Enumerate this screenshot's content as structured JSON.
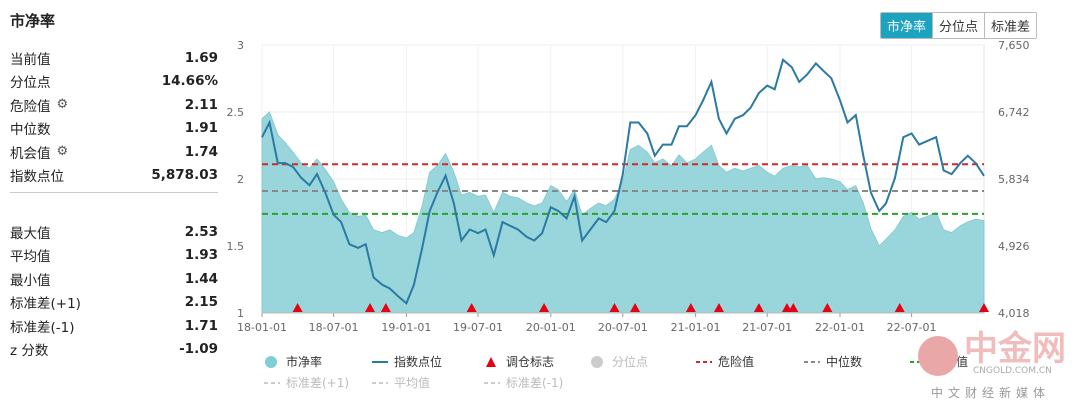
{
  "title": "市净率",
  "stats_top": [
    {
      "label": "当前值",
      "value": "1.69",
      "gear": false
    },
    {
      "label": "分位点",
      "value": "14.66%",
      "gear": false
    },
    {
      "label": "危险值",
      "value": "2.11",
      "gear": true
    },
    {
      "label": "中位数",
      "value": "1.91",
      "gear": false
    },
    {
      "label": "机会值",
      "value": "1.74",
      "gear": true
    },
    {
      "label": "指数点位",
      "value": "5,878.03",
      "gear": false
    }
  ],
  "stats_bottom": [
    {
      "label": "最大值",
      "value": "2.53"
    },
    {
      "label": "平均值",
      "value": "1.93"
    },
    {
      "label": "最小值",
      "value": "1.44"
    },
    {
      "label": "标准差(+1)",
      "value": "2.15"
    },
    {
      "label": "标准差(-1)",
      "value": "1.71"
    },
    {
      "label": "z 分数",
      "value": "-1.09"
    }
  ],
  "tabs": [
    "市净率",
    "分位点",
    "标准差"
  ],
  "active_tab": "市净率",
  "legend": [
    {
      "label": "市净率",
      "type": "dot",
      "color": "#7fcdd5"
    },
    {
      "label": "指数点位",
      "type": "line",
      "color": "#2a7aa3"
    },
    {
      "label": "调仓标志",
      "type": "triangle",
      "color": "#e60012"
    },
    {
      "label": "分位点",
      "type": "dot",
      "color": "#cccccc",
      "muted": true
    },
    {
      "label": "危险值",
      "type": "dash",
      "color": "#d62728"
    },
    {
      "label": "中位数",
      "type": "dash",
      "color": "#888888"
    },
    {
      "label": "机会值",
      "type": "dash",
      "color": "#2ca02c"
    },
    {
      "label": "标准差(+1)",
      "type": "dash",
      "color": "#cccccc",
      "muted": true
    },
    {
      "label": "平均值",
      "type": "dash",
      "color": "#cccccc",
      "muted": true
    },
    {
      "label": "标准差(-1)",
      "type": "dash",
      "color": "#cccccc",
      "muted": true
    }
  ],
  "watermark": {
    "big": "中金网",
    "small": "CNGOLD.COM.CN",
    "cn": "中文财经新媒体"
  },
  "chart_data": {
    "type": "area",
    "x_ticks": [
      "18-01-01",
      "18-07-01",
      "19-01-01",
      "19-07-01",
      "20-01-01",
      "20-07-01",
      "21-01-01",
      "21-07-01",
      "22-01-01",
      "22-07-01"
    ],
    "x_range": [
      "2018-01-01",
      "2022-12-31"
    ],
    "y_left": {
      "min": 1,
      "max": 3,
      "ticks": [
        "1",
        "1.5",
        "2",
        "2.5",
        "3"
      ]
    },
    "y_right": {
      "min": 4018,
      "max": 7650,
      "ticks": [
        "4,018",
        "4,926",
        "5,834",
        "6,742",
        "7,650"
      ]
    },
    "reference_lines": [
      {
        "name": "危险值",
        "value": 2.11,
        "color": "#d62728"
      },
      {
        "name": "中位数",
        "value": 1.91,
        "color": "#888888"
      },
      {
        "name": "机会值",
        "value": 1.74,
        "color": "#2ca02c"
      }
    ],
    "pb_series": [
      [
        "2018-01-01",
        2.45
      ],
      [
        "2018-01-20",
        2.5
      ],
      [
        "2018-02-10",
        2.33
      ],
      [
        "2018-03-01",
        2.27
      ],
      [
        "2018-03-20",
        2.2
      ],
      [
        "2018-04-10",
        2.12
      ],
      [
        "2018-05-01",
        2.08
      ],
      [
        "2018-05-20",
        2.15
      ],
      [
        "2018-06-10",
        2.07
      ],
      [
        "2018-07-01",
        1.98
      ],
      [
        "2018-07-20",
        1.85
      ],
      [
        "2018-08-10",
        1.75
      ],
      [
        "2018-09-01",
        1.72
      ],
      [
        "2018-09-20",
        1.73
      ],
      [
        "2018-10-10",
        1.62
      ],
      [
        "2018-11-01",
        1.6
      ],
      [
        "2018-11-20",
        1.62
      ],
      [
        "2018-12-10",
        1.58
      ],
      [
        "2019-01-01",
        1.56
      ],
      [
        "2019-01-20",
        1.6
      ],
      [
        "2019-02-10",
        1.8
      ],
      [
        "2019-03-01",
        2.05
      ],
      [
        "2019-03-20",
        2.1
      ],
      [
        "2019-04-10",
        2.19
      ],
      [
        "2019-05-01",
        2.05
      ],
      [
        "2019-05-20",
        1.88
      ],
      [
        "2019-06-10",
        1.9
      ],
      [
        "2019-07-01",
        1.87
      ],
      [
        "2019-07-20",
        1.88
      ],
      [
        "2019-08-10",
        1.75
      ],
      [
        "2019-09-01",
        1.9
      ],
      [
        "2019-09-20",
        1.87
      ],
      [
        "2019-10-10",
        1.86
      ],
      [
        "2019-11-01",
        1.82
      ],
      [
        "2019-11-20",
        1.8
      ],
      [
        "2019-12-10",
        1.82
      ],
      [
        "2020-01-01",
        1.95
      ],
      [
        "2020-01-20",
        1.92
      ],
      [
        "2020-02-10",
        1.83
      ],
      [
        "2020-03-01",
        1.92
      ],
      [
        "2020-03-20",
        1.73
      ],
      [
        "2020-04-10",
        1.78
      ],
      [
        "2020-05-01",
        1.82
      ],
      [
        "2020-05-20",
        1.8
      ],
      [
        "2020-06-10",
        1.85
      ],
      [
        "2020-07-01",
        1.98
      ],
      [
        "2020-07-20",
        2.22
      ],
      [
        "2020-08-10",
        2.25
      ],
      [
        "2020-09-01",
        2.2
      ],
      [
        "2020-09-20",
        2.12
      ],
      [
        "2020-10-10",
        2.15
      ],
      [
        "2020-11-01",
        2.1
      ],
      [
        "2020-11-20",
        2.18
      ],
      [
        "2020-12-10",
        2.12
      ],
      [
        "2021-01-01",
        2.15
      ],
      [
        "2021-01-20",
        2.2
      ],
      [
        "2021-02-10",
        2.25
      ],
      [
        "2021-03-01",
        2.1
      ],
      [
        "2021-03-20",
        2.05
      ],
      [
        "2021-04-10",
        2.08
      ],
      [
        "2021-05-01",
        2.06
      ],
      [
        "2021-05-20",
        2.08
      ],
      [
        "2021-06-10",
        2.1
      ],
      [
        "2021-07-01",
        2.05
      ],
      [
        "2021-07-20",
        2.02
      ],
      [
        "2021-08-10",
        2.08
      ],
      [
        "2021-09-01",
        2.1
      ],
      [
        "2021-09-20",
        2.09
      ],
      [
        "2021-10-10",
        2.1
      ],
      [
        "2021-11-01",
        2.0
      ],
      [
        "2021-11-20",
        2.01
      ],
      [
        "2021-12-10",
        2.0
      ],
      [
        "2022-01-01",
        1.98
      ],
      [
        "2022-01-20",
        1.92
      ],
      [
        "2022-02-10",
        1.95
      ],
      [
        "2022-03-01",
        1.82
      ],
      [
        "2022-03-20",
        1.63
      ],
      [
        "2022-04-10",
        1.5
      ],
      [
        "2022-04-27",
        1.55
      ],
      [
        "2022-05-20",
        1.62
      ],
      [
        "2022-06-10",
        1.72
      ],
      [
        "2022-07-01",
        1.75
      ],
      [
        "2022-07-20",
        1.7
      ],
      [
        "2022-08-10",
        1.72
      ],
      [
        "2022-09-01",
        1.75
      ],
      [
        "2022-09-20",
        1.62
      ],
      [
        "2022-10-10",
        1.6
      ],
      [
        "2022-11-01",
        1.65
      ],
      [
        "2022-11-20",
        1.68
      ],
      [
        "2022-12-10",
        1.7
      ],
      [
        "2022-12-31",
        1.69
      ]
    ],
    "index_series": [
      [
        "2018-01-01",
        6400
      ],
      [
        "2018-01-20",
        6600
      ],
      [
        "2018-02-10",
        6050
      ],
      [
        "2018-03-01",
        6050
      ],
      [
        "2018-03-20",
        6000
      ],
      [
        "2018-04-10",
        5850
      ],
      [
        "2018-05-01",
        5750
      ],
      [
        "2018-05-20",
        5900
      ],
      [
        "2018-06-10",
        5650
      ],
      [
        "2018-07-01",
        5350
      ],
      [
        "2018-07-20",
        5250
      ],
      [
        "2018-08-10",
        4950
      ],
      [
        "2018-09-01",
        4900
      ],
      [
        "2018-09-20",
        4950
      ],
      [
        "2018-10-10",
        4500
      ],
      [
        "2018-11-01",
        4400
      ],
      [
        "2018-11-20",
        4350
      ],
      [
        "2018-12-10",
        4250
      ],
      [
        "2019-01-01",
        4150
      ],
      [
        "2019-01-20",
        4400
      ],
      [
        "2019-02-10",
        4900
      ],
      [
        "2019-03-01",
        5400
      ],
      [
        "2019-03-20",
        5650
      ],
      [
        "2019-04-10",
        5880
      ],
      [
        "2019-05-01",
        5500
      ],
      [
        "2019-05-20",
        5000
      ],
      [
        "2019-06-10",
        5150
      ],
      [
        "2019-07-01",
        5100
      ],
      [
        "2019-07-20",
        5150
      ],
      [
        "2019-08-10",
        4800
      ],
      [
        "2019-09-01",
        5250
      ],
      [
        "2019-09-20",
        5200
      ],
      [
        "2019-10-10",
        5150
      ],
      [
        "2019-11-01",
        5050
      ],
      [
        "2019-11-20",
        5000
      ],
      [
        "2019-12-10",
        5100
      ],
      [
        "2020-01-01",
        5450
      ],
      [
        "2020-01-20",
        5400
      ],
      [
        "2020-02-10",
        5300
      ],
      [
        "2020-03-01",
        5600
      ],
      [
        "2020-03-20",
        5000
      ],
      [
        "2020-04-10",
        5150
      ],
      [
        "2020-05-01",
        5300
      ],
      [
        "2020-05-20",
        5250
      ],
      [
        "2020-06-10",
        5400
      ],
      [
        "2020-07-01",
        5900
      ],
      [
        "2020-07-20",
        6600
      ],
      [
        "2020-08-10",
        6600
      ],
      [
        "2020-09-01",
        6450
      ],
      [
        "2020-09-20",
        6150
      ],
      [
        "2020-10-10",
        6300
      ],
      [
        "2020-11-01",
        6300
      ],
      [
        "2020-11-20",
        6550
      ],
      [
        "2020-12-10",
        6550
      ],
      [
        "2021-01-01",
        6700
      ],
      [
        "2021-01-20",
        6900
      ],
      [
        "2021-02-10",
        7150
      ],
      [
        "2021-03-01",
        6650
      ],
      [
        "2021-03-20",
        6450
      ],
      [
        "2021-04-10",
        6650
      ],
      [
        "2021-05-01",
        6700
      ],
      [
        "2021-05-20",
        6800
      ],
      [
        "2021-06-10",
        7000
      ],
      [
        "2021-07-01",
        7100
      ],
      [
        "2021-07-20",
        7050
      ],
      [
        "2021-08-10",
        7450
      ],
      [
        "2021-09-01",
        7350
      ],
      [
        "2021-09-20",
        7150
      ],
      [
        "2021-10-10",
        7250
      ],
      [
        "2021-11-01",
        7400
      ],
      [
        "2021-11-20",
        7300
      ],
      [
        "2021-12-10",
        7200
      ],
      [
        "2022-01-01",
        6900
      ],
      [
        "2022-01-20",
        6600
      ],
      [
        "2022-02-10",
        6700
      ],
      [
        "2022-03-01",
        6150
      ],
      [
        "2022-03-20",
        5650
      ],
      [
        "2022-04-10",
        5400
      ],
      [
        "2022-04-27",
        5500
      ],
      [
        "2022-05-20",
        5850
      ],
      [
        "2022-06-10",
        6400
      ],
      [
        "2022-07-01",
        6450
      ],
      [
        "2022-07-20",
        6300
      ],
      [
        "2022-08-10",
        6350
      ],
      [
        "2022-09-01",
        6400
      ],
      [
        "2022-09-20",
        5950
      ],
      [
        "2022-10-10",
        5900
      ],
      [
        "2022-11-01",
        6050
      ],
      [
        "2022-11-20",
        6150
      ],
      [
        "2022-12-10",
        6050
      ],
      [
        "2022-12-31",
        5878
      ]
    ],
    "rebalance_markers": [
      "2018-04-01",
      "2018-10-01",
      "2018-11-10",
      "2019-06-15",
      "2019-12-15",
      "2020-06-10",
      "2020-08-01",
      "2020-12-20",
      "2021-03-01",
      "2021-06-10",
      "2021-08-20",
      "2021-09-05",
      "2021-11-30",
      "2022-06-01",
      "2022-12-31"
    ]
  }
}
